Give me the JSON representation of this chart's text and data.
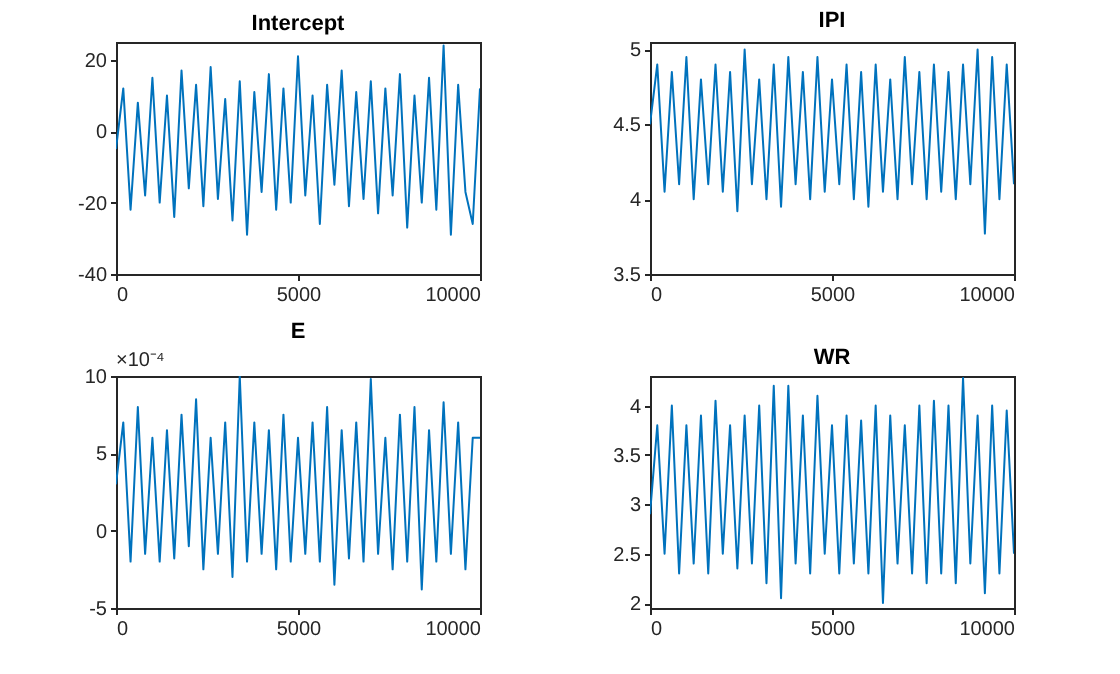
{
  "chart_data": [
    {
      "type": "line",
      "title": "Intercept",
      "x": [
        0,
        200,
        400,
        600,
        800,
        1000,
        1200,
        1400,
        1600,
        1800,
        2000,
        2200,
        2400,
        2600,
        2800,
        3000,
        3200,
        3400,
        3600,
        3800,
        4000,
        4200,
        4400,
        4600,
        4800,
        5000,
        5200,
        5400,
        5600,
        5800,
        6000,
        6200,
        6400,
        6600,
        6800,
        7000,
        7200,
        7400,
        7600,
        7800,
        8000,
        8200,
        8400,
        8600,
        8800,
        9000,
        9200,
        9400,
        9600,
        9800,
        10000
      ],
      "series": [
        {
          "color": "#0072bd",
          "values": [
            -5,
            12,
            -22,
            8,
            -18,
            15,
            -20,
            10,
            -24,
            17,
            -16,
            13,
            -21,
            18,
            -19,
            9,
            -25,
            14,
            -29,
            11,
            -17,
            16,
            -22,
            12,
            -20,
            21,
            -18,
            10,
            -26,
            13,
            -15,
            17,
            -21,
            11,
            -19,
            14,
            -23,
            12,
            -18,
            16,
            -27,
            10,
            -20,
            15,
            -22,
            24,
            -29,
            13,
            -17,
            -26,
            12
          ]
        }
      ],
      "xlim": [
        0,
        10000
      ],
      "xticks": [
        0,
        5000,
        10000
      ],
      "ylim": [
        -40,
        25
      ],
      "yticks": [
        -40,
        -20,
        0,
        20
      ]
    },
    {
      "type": "line",
      "title": "IPI",
      "x": [
        0,
        200,
        400,
        600,
        800,
        1000,
        1200,
        1400,
        1600,
        1800,
        2000,
        2200,
        2400,
        2600,
        2800,
        3000,
        3200,
        3400,
        3600,
        3800,
        4000,
        4200,
        4400,
        4600,
        4800,
        5000,
        5200,
        5400,
        5600,
        5800,
        6000,
        6200,
        6400,
        6600,
        6800,
        7000,
        7200,
        7400,
        7600,
        7800,
        8000,
        8200,
        8400,
        8600,
        8800,
        9000,
        9200,
        9400,
        9600,
        9800,
        10000
      ],
      "series": [
        {
          "color": "#0072bd",
          "values": [
            4.5,
            4.9,
            4.05,
            4.85,
            4.1,
            4.95,
            4.0,
            4.8,
            4.1,
            4.9,
            4.05,
            4.85,
            3.92,
            5.0,
            4.1,
            4.8,
            4.0,
            4.9,
            3.95,
            4.95,
            4.1,
            4.85,
            4.0,
            4.95,
            4.05,
            4.8,
            4.1,
            4.9,
            4.0,
            4.85,
            3.95,
            4.9,
            4.05,
            4.8,
            4.0,
            4.95,
            4.1,
            4.85,
            4.0,
            4.9,
            4.05,
            4.85,
            4.0,
            4.9,
            4.1,
            5.0,
            3.77,
            4.95,
            4.0,
            4.9,
            4.1
          ]
        }
      ],
      "xlim": [
        0,
        10000
      ],
      "xticks": [
        0,
        5000,
        10000
      ],
      "ylim": [
        3.5,
        5.05
      ],
      "yticks": [
        3.5,
        4,
        4.5,
        5
      ]
    },
    {
      "type": "line",
      "title": "E",
      "annotations": [
        "×10⁻⁴"
      ],
      "x": [
        0,
        200,
        400,
        600,
        800,
        1000,
        1200,
        1400,
        1600,
        1800,
        2000,
        2200,
        2400,
        2600,
        2800,
        3000,
        3200,
        3400,
        3600,
        3800,
        4000,
        4200,
        4400,
        4600,
        4800,
        5000,
        5200,
        5400,
        5600,
        5800,
        6000,
        6200,
        6400,
        6600,
        6800,
        7000,
        7200,
        7400,
        7600,
        7800,
        8000,
        8200,
        8400,
        8600,
        8800,
        9000,
        9200,
        9400,
        9600,
        9800,
        10000
      ],
      "series": [
        {
          "color": "#0072bd",
          "values": [
            3,
            7,
            -2,
            8,
            -1.5,
            6,
            -2,
            6.5,
            -1.8,
            7.5,
            -1,
            8.5,
            -2.5,
            6,
            -1.5,
            7,
            -3,
            10,
            -2,
            7,
            -1.5,
            6.5,
            -2.5,
            7.5,
            -2,
            6,
            -1.5,
            7,
            -2,
            8,
            -3.5,
            6.5,
            -1.8,
            7,
            -2,
            9.8,
            -1.5,
            6,
            -2.5,
            7.5,
            -2,
            8,
            -3.8,
            6.5,
            -2,
            8.3,
            -1.5,
            7,
            -2.5,
            6,
            6
          ]
        }
      ],
      "xlim": [
        0,
        10000
      ],
      "xticks": [
        0,
        5000,
        10000
      ],
      "ylim": [
        -5,
        10
      ],
      "yticks": [
        -5,
        0,
        5,
        10
      ]
    },
    {
      "type": "line",
      "title": "WR",
      "x": [
        0,
        200,
        400,
        600,
        800,
        1000,
        1200,
        1400,
        1600,
        1800,
        2000,
        2200,
        2400,
        2600,
        2800,
        3000,
        3200,
        3400,
        3600,
        3800,
        4000,
        4200,
        4400,
        4600,
        4800,
        5000,
        5200,
        5400,
        5600,
        5800,
        6000,
        6200,
        6400,
        6600,
        6800,
        7000,
        7200,
        7400,
        7600,
        7800,
        8000,
        8200,
        8400,
        8600,
        8800,
        9000,
        9200,
        9400,
        9600,
        9800,
        10000
      ],
      "series": [
        {
          "color": "#0072bd",
          "values": [
            2.9,
            3.8,
            2.5,
            4.0,
            2.3,
            3.8,
            2.4,
            3.9,
            2.3,
            4.05,
            2.5,
            3.8,
            2.35,
            3.9,
            2.4,
            4.0,
            2.2,
            4.2,
            2.05,
            4.2,
            2.4,
            3.9,
            2.3,
            4.1,
            2.5,
            3.8,
            2.3,
            3.9,
            2.4,
            3.85,
            2.3,
            4.0,
            2.0,
            3.9,
            2.4,
            3.8,
            2.3,
            4.0,
            2.2,
            4.05,
            2.3,
            4.0,
            2.2,
            4.28,
            2.4,
            3.9,
            2.1,
            4.0,
            2.3,
            3.95,
            2.5
          ]
        }
      ],
      "xlim": [
        0,
        10000
      ],
      "xticks": [
        0,
        5000,
        10000
      ],
      "ylim": [
        1.95,
        4.3
      ],
      "yticks": [
        2,
        2.5,
        3,
        3.5,
        4
      ]
    }
  ]
}
